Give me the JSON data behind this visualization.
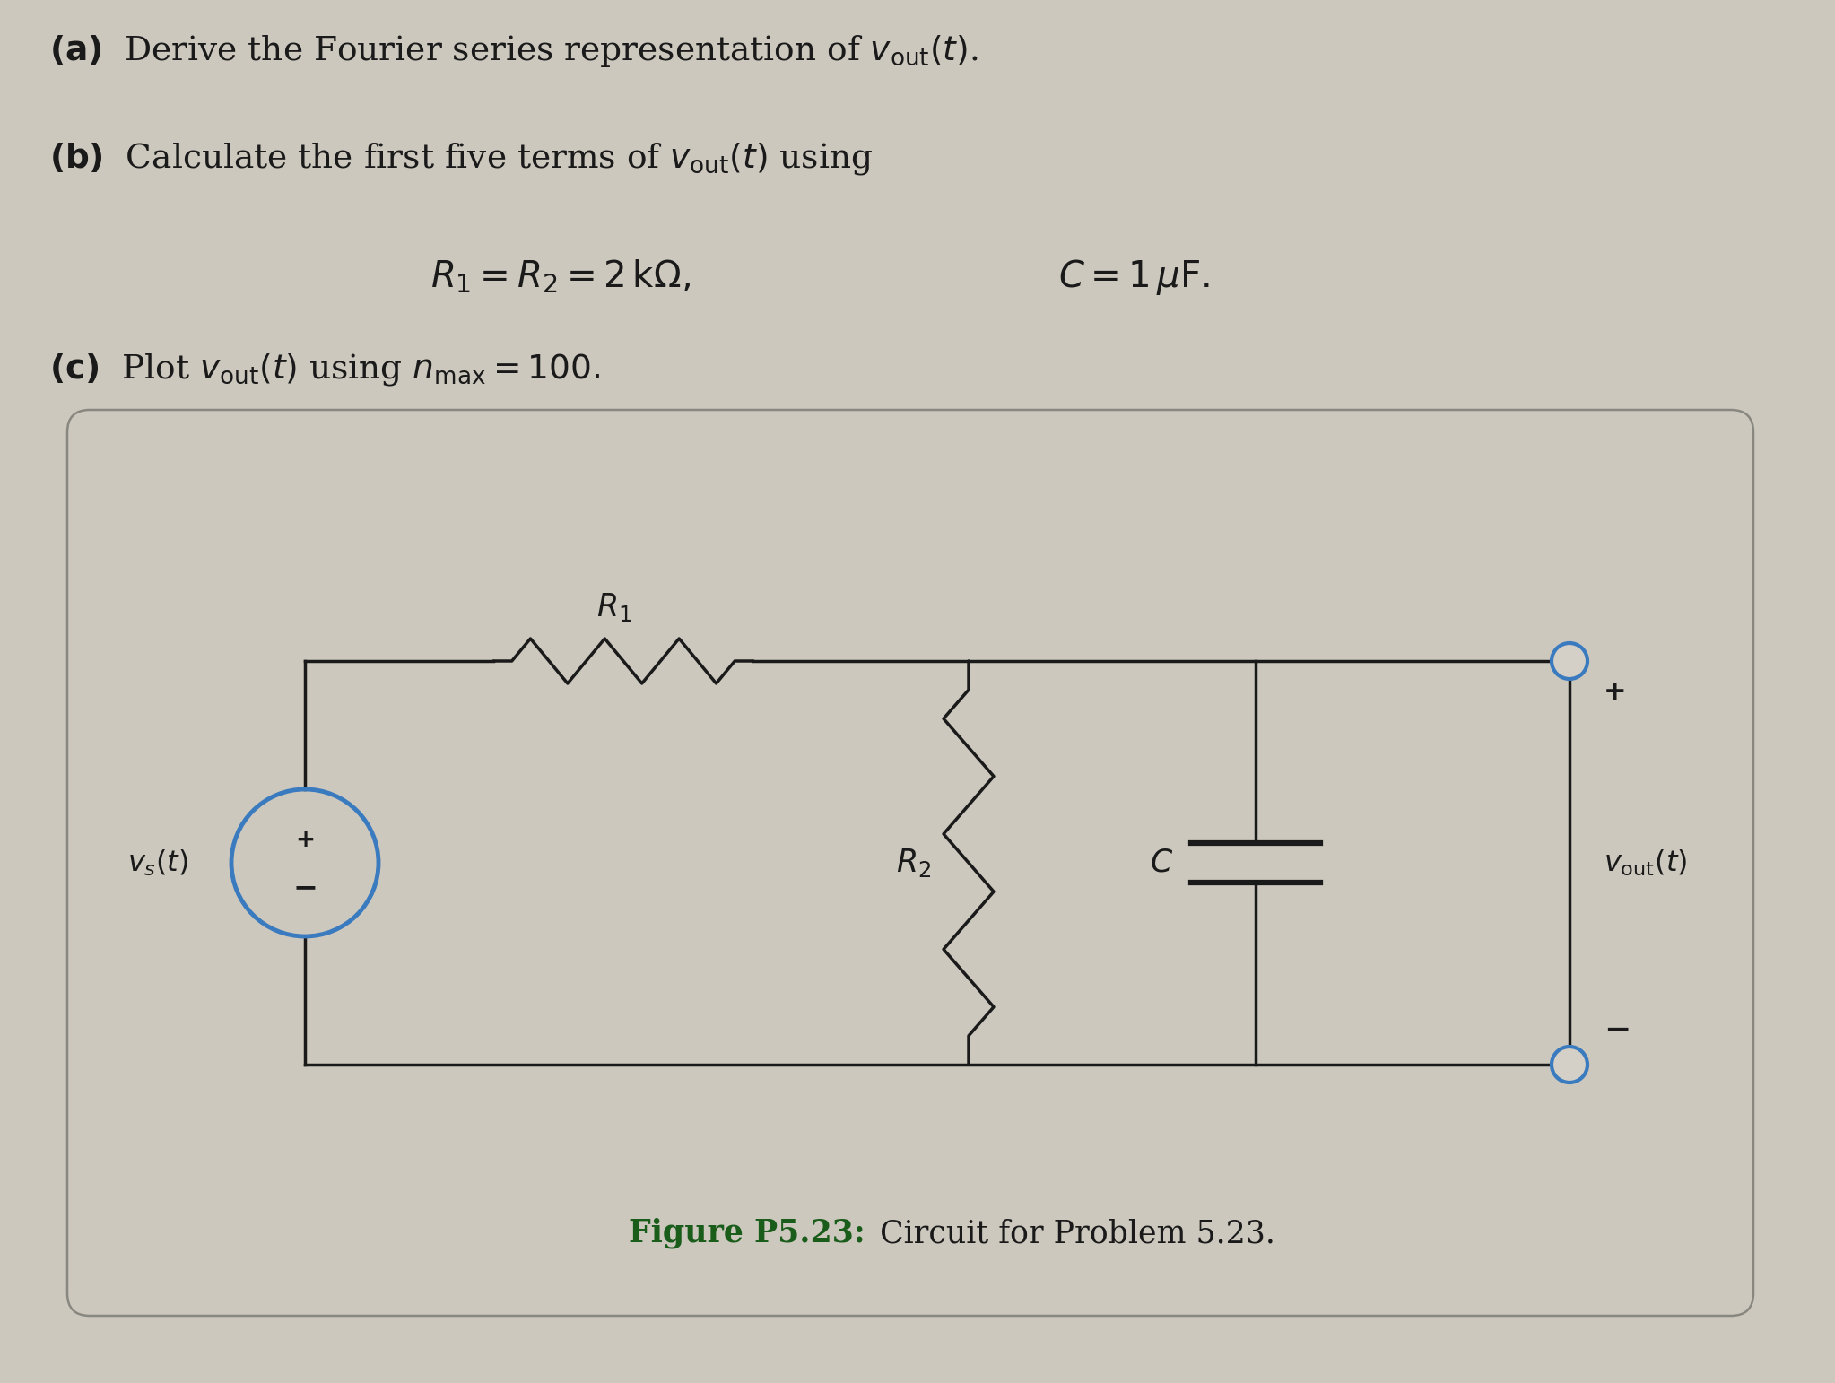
{
  "bg_color": "#ccc8be",
  "text_color": "#1a1a1a",
  "circuit_bg": "#ccc8be",
  "circuit_border": "#888880",
  "source_color": "#3a7abf",
  "wire_color": "#1a1a1a",
  "node_color": "#3a7abf",
  "fig_caption_bold": "Figure P5.23:",
  "fig_caption_rest": " Circuit for Problem 5.23.",
  "fig_caption_color_bold": "#1a5c1a",
  "fig_caption_color_rest": "#1a1a1a"
}
